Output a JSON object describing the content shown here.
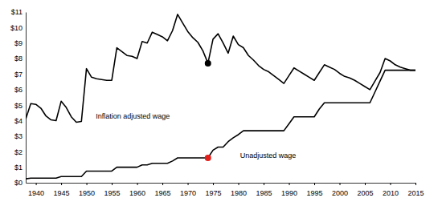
{
  "chart_data": {
    "type": "line",
    "x": [
      1938,
      1939,
      1940,
      1941,
      1942,
      1943,
      1944,
      1945,
      1946,
      1947,
      1948,
      1949,
      1950,
      1951,
      1952,
      1953,
      1954,
      1955,
      1956,
      1957,
      1958,
      1959,
      1960,
      1961,
      1962,
      1963,
      1964,
      1965,
      1966,
      1967,
      1968,
      1969,
      1970,
      1971,
      1972,
      1973,
      1974,
      1975,
      1976,
      1977,
      1978,
      1979,
      1980,
      1981,
      1982,
      1983,
      1984,
      1985,
      1986,
      1987,
      1988,
      1989,
      1990,
      1991,
      1992,
      1993,
      1994,
      1995,
      1996,
      1997,
      1998,
      1999,
      2000,
      2001,
      2002,
      2003,
      2004,
      2005,
      2006,
      2007,
      2008,
      2009,
      2010,
      2011,
      2012,
      2013,
      2014,
      2015
    ],
    "series": [
      {
        "name": "Inflation adjusted wage",
        "color": "#000000",
        "highlight": {
          "x": 1974,
          "color": "#000000"
        },
        "values": [
          4.1,
          5.1,
          5.05,
          4.8,
          4.3,
          4.05,
          4.0,
          5.25,
          4.85,
          4.25,
          3.9,
          3.95,
          7.35,
          6.8,
          6.7,
          6.65,
          6.6,
          6.6,
          8.7,
          8.45,
          8.2,
          8.15,
          8.0,
          9.1,
          9.0,
          9.7,
          9.55,
          9.4,
          9.15,
          9.8,
          10.85,
          10.3,
          9.75,
          9.35,
          9.05,
          8.5,
          7.7,
          9.25,
          9.6,
          9.0,
          8.35,
          9.45,
          8.9,
          8.7,
          8.2,
          7.9,
          7.55,
          7.3,
          7.15,
          6.9,
          6.65,
          6.4,
          6.9,
          7.4,
          7.2,
          7.0,
          6.8,
          6.6,
          7.1,
          7.6,
          7.45,
          7.3,
          7.05,
          6.85,
          6.75,
          6.6,
          6.4,
          6.2,
          6.0,
          6.55,
          7.1,
          8.0,
          7.85,
          7.6,
          7.45,
          7.35,
          7.25,
          7.25
        ]
      },
      {
        "name": "Unadjusted wage",
        "color": "#000000",
        "highlight": {
          "x": 1974,
          "color": "#e3201b"
        },
        "values": [
          0.25,
          0.3,
          0.3,
          0.3,
          0.3,
          0.3,
          0.3,
          0.4,
          0.4,
          0.4,
          0.4,
          0.4,
          0.75,
          0.75,
          0.75,
          0.75,
          0.75,
          0.75,
          1.0,
          1.0,
          1.0,
          1.0,
          1.0,
          1.15,
          1.15,
          1.25,
          1.25,
          1.25,
          1.25,
          1.4,
          1.6,
          1.6,
          1.6,
          1.6,
          1.6,
          1.6,
          1.6,
          2.1,
          2.3,
          2.3,
          2.65,
          2.9,
          3.1,
          3.35,
          3.35,
          3.35,
          3.35,
          3.35,
          3.35,
          3.35,
          3.35,
          3.35,
          3.8,
          4.25,
          4.25,
          4.25,
          4.25,
          4.25,
          4.75,
          5.15,
          5.15,
          5.15,
          5.15,
          5.15,
          5.15,
          5.15,
          5.15,
          5.15,
          5.15,
          5.85,
          6.55,
          7.25,
          7.25,
          7.25,
          7.25,
          7.25,
          7.25,
          7.25
        ]
      }
    ],
    "xlim": [
      1938,
      2015
    ],
    "xticks": [
      1940,
      1945,
      1950,
      1955,
      1960,
      1965,
      1970,
      1975,
      1980,
      1985,
      1990,
      1995,
      2000,
      2005,
      2010,
      2015
    ],
    "ylim": [
      0,
      11
    ],
    "yticks": [
      {
        "value": 0,
        "label": "$0"
      },
      {
        "value": 1,
        "label": "$1"
      },
      {
        "value": 2,
        "label": "$2"
      },
      {
        "value": 3,
        "label": "$3"
      },
      {
        "value": 4,
        "label": "$4"
      },
      {
        "value": 5,
        "label": "$5"
      },
      {
        "value": 6,
        "label": "$6"
      },
      {
        "value": 7,
        "label": "$7"
      },
      {
        "value": 8,
        "label": "$8"
      },
      {
        "value": 9,
        "label": "$9"
      },
      {
        "value": 10,
        "label": "$10"
      },
      {
        "value": 11,
        "label": "$11"
      }
    ],
    "grid": false
  }
}
